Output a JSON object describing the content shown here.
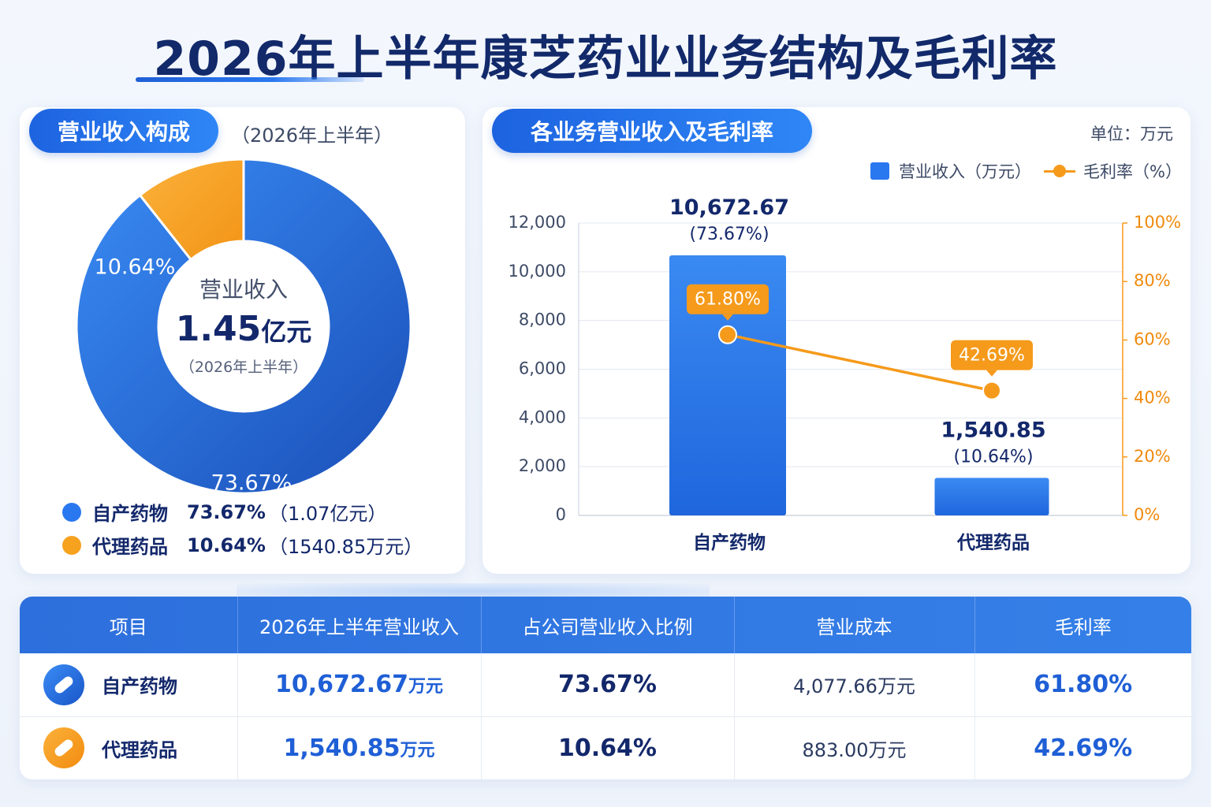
{
  "title": "2026年上半年康芝药业业务结构及毛利率",
  "left_panel": {
    "heading": "营业收入构成",
    "period": "（2026年上半年）",
    "center_label": "营业收入",
    "center_value": "1.45",
    "center_unit": "亿元",
    "center_period": "（2026年上半年）",
    "legend": [
      {
        "name": "自产药物",
        "pct": "73.67%",
        "amount": "（1.07亿元）"
      },
      {
        "name": "代理药品",
        "pct": "10.64%",
        "amount": "（1540.85万元）"
      }
    ]
  },
  "right_panel": {
    "heading": "各业务营业收入及毛利率",
    "unit": "单位：万元",
    "legend_bar": "营业收入（万元）",
    "legend_line": "毛利率（%）"
  },
  "colors": {
    "primary_blue": "#2a78f0",
    "dark_blue": "#1f5fd6",
    "orange": "#f59a1b",
    "navy": "#13286b"
  },
  "chart_data": [
    {
      "type": "pie",
      "slices": [
        {
          "label": "自产药物",
          "value": 73.67,
          "display": "73.67%",
          "color": "#2a78f0"
        },
        {
          "label": "代理药品",
          "value": 10.64,
          "display": "10.64%",
          "color": "#f7a21f"
        }
      ]
    },
    {
      "type": "bar",
      "categories": [
        "自产药物",
        "代理药品"
      ],
      "series": [
        {
          "name": "营业收入（万元）",
          "values": [
            10672.67,
            1540.85
          ],
          "labels": [
            "10,672.67",
            "1,540.85"
          ],
          "sublabels": [
            "(73.67%)",
            "(10.64%)"
          ],
          "axis": "left"
        },
        {
          "name": "毛利率（%）",
          "type": "line",
          "values": [
            61.8,
            42.69
          ],
          "labels": [
            "61.80%",
            "42.69%"
          ],
          "axis": "right"
        }
      ],
      "ylim": [
        0,
        12000
      ],
      "y2lim": [
        0,
        100
      ],
      "yticks": [
        "0",
        "2,000",
        "4,000",
        "6,000",
        "8,000",
        "10,000",
        "12,000"
      ],
      "y2ticks": [
        "0%",
        "20%",
        "40%",
        "60%",
        "80%",
        "100%"
      ],
      "grid": true,
      "legend": "top-right"
    }
  ],
  "table": {
    "headers": [
      "项目",
      "2026年上半年营业收入",
      "占公司营业收入比例",
      "营业成本",
      "毛利率"
    ],
    "rows": [
      {
        "item": "自产药物",
        "revenue": "10,672.67",
        "revenue_unit": "万元",
        "share": "73.67%",
        "cost": "4,077.66万元",
        "margin": "61.80%"
      },
      {
        "item": "代理药品",
        "revenue": "1,540.85",
        "revenue_unit": "万元",
        "share": "10.64%",
        "cost": "883.00万元",
        "margin": "42.69%"
      }
    ]
  }
}
